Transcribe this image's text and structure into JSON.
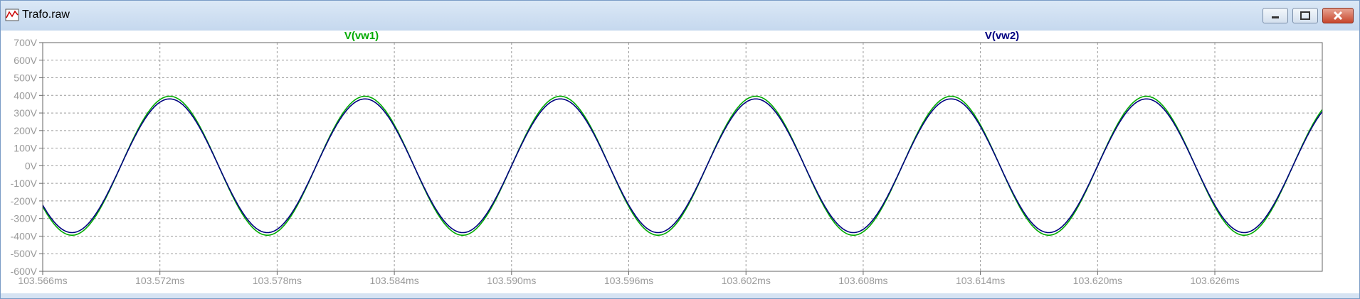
{
  "window": {
    "title": "Trafo.raw",
    "icon": "waveform-plot-icon",
    "controls": [
      "minimize-icon",
      "maximize-icon",
      "close-icon"
    ]
  },
  "chart_data": {
    "type": "line",
    "xlabel": "",
    "ylabel": "",
    "xlim": [
      103.566,
      103.6315
    ],
    "ylim": [
      -600,
      700
    ],
    "x_ticks": [
      "103.566ms",
      "103.572ms",
      "103.578ms",
      "103.584ms",
      "103.590ms",
      "103.596ms",
      "103.602ms",
      "103.608ms",
      "103.614ms",
      "103.620ms",
      "103.626ms"
    ],
    "y_ticks": [
      "700V",
      "600V",
      "500V",
      "400V",
      "300V",
      "200V",
      "100V",
      "0V",
      "-100V",
      "-200V",
      "-300V",
      "-400V",
      "-500V",
      "-600V"
    ],
    "grid": true,
    "x_unit": "ms",
    "y_unit": "V",
    "series": [
      {
        "name": "V(vw1)",
        "color": "#00aa00",
        "amplitude": 395,
        "period_ms": 0.01,
        "first_peak_ms": 103.5725,
        "start_value": -215
      },
      {
        "name": "V(vw2)",
        "color": "#000080",
        "amplitude": 380,
        "period_ms": 0.01,
        "first_peak_ms": 103.5725,
        "start_value": -210
      }
    ]
  }
}
